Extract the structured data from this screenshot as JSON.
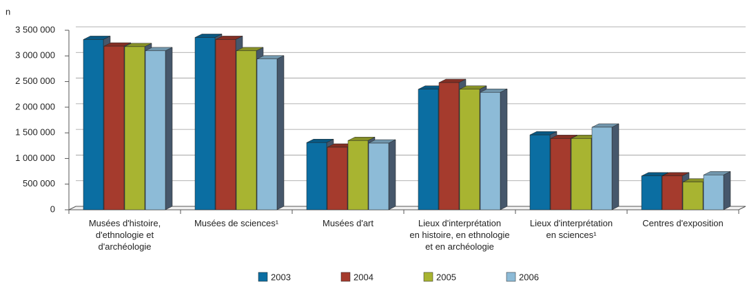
{
  "chart_data": {
    "type": "bar3d",
    "y_label": "n",
    "categories": [
      "Musées d'histoire,\nd'ethnologie et\nd'archéologie",
      "Musées de sciences¹",
      "Musées d'art",
      "Lieux d'interprétation\nen histoire, en ethnologie\net en archéologie",
      "Lieux d'interprétation\nen sciences¹",
      "Centres d'exposition"
    ],
    "series": [
      {
        "name": "2003",
        "color": "#0b6ea2",
        "values": [
          3320000,
          3360000,
          1310000,
          2350000,
          1460000,
          660000
        ]
      },
      {
        "name": "2004",
        "color": "#a53b2d",
        "values": [
          3190000,
          3320000,
          1220000,
          2480000,
          1390000,
          660000
        ]
      },
      {
        "name": "2005",
        "color": "#a8b431",
        "values": [
          3180000,
          3100000,
          1350000,
          2350000,
          1390000,
          540000
        ]
      },
      {
        "name": "2006",
        "color": "#8dbbd7",
        "values": [
          3100000,
          2940000,
          1300000,
          2290000,
          1610000,
          680000
        ]
      }
    ],
    "ylim": [
      0,
      3500000
    ],
    "yticks": [
      0,
      {
        "value": 500000,
        "label": "500 000"
      },
      {
        "value": 1000000,
        "label": "1 000 000"
      },
      {
        "value": 1500000,
        "label": "1 500 000"
      },
      {
        "value": 2000000,
        "label": "2 000 000"
      },
      {
        "value": 2500000,
        "label": "2 500 000"
      },
      {
        "value": 3000000,
        "label": "3 000 000"
      },
      {
        "value": 3500000,
        "label": "3 500 000"
      }
    ],
    "grid": true,
    "legend": "bottom"
  }
}
